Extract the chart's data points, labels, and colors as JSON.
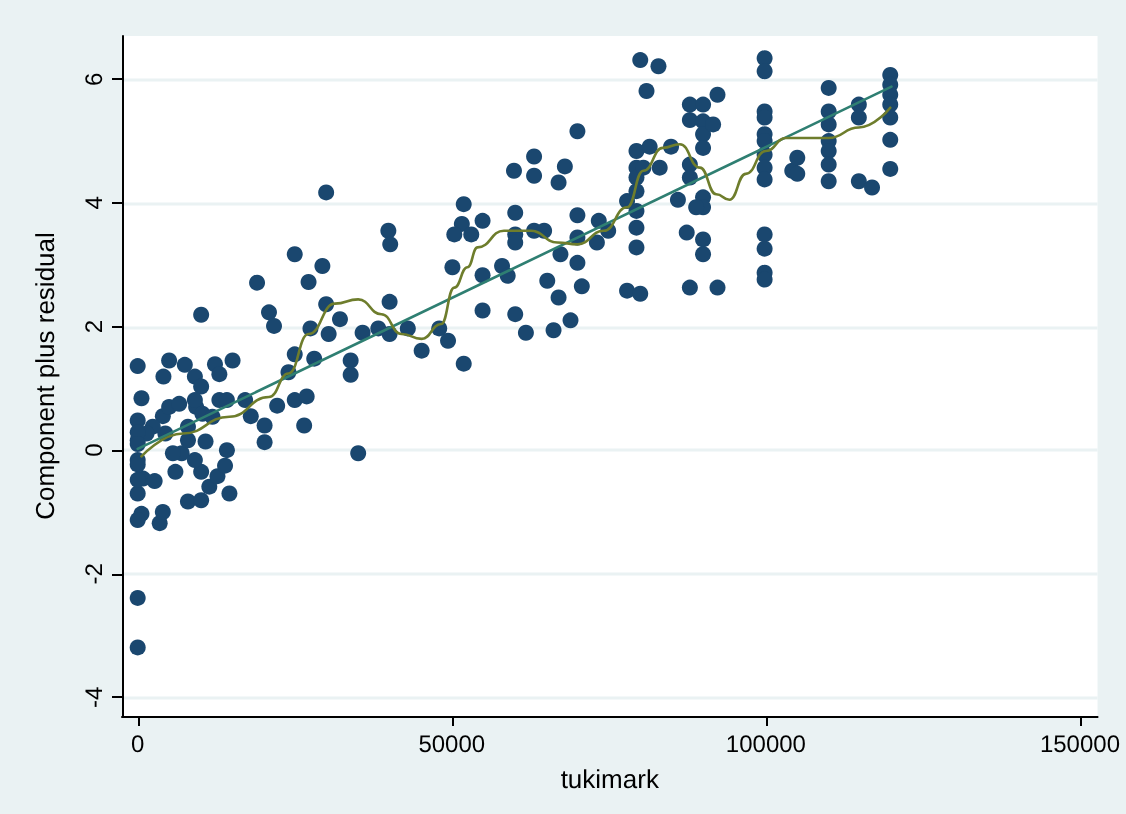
{
  "chart_data": {
    "type": "scatter",
    "xlabel": "tukimark",
    "ylabel": "Component plus residual",
    "xlim": [
      -2500,
      152800
    ],
    "ylim": [
      -4.3,
      6.7
    ],
    "xticks": [
      0,
      50000,
      100000,
      150000
    ],
    "yticks": [
      -4,
      -2,
      0,
      2,
      4,
      6
    ],
    "grid": "y",
    "marker": "circle",
    "series": [
      {
        "color": "#1a476f",
        "x": [
          0,
          600,
          0,
          5000,
          4100,
          7500,
          9100,
          10100,
          10100,
          12300,
          15100,
          13000,
          19000,
          20900,
          21700,
          25000,
          27200,
          29400,
          30000,
          30000,
          30400,
          27500,
          25000,
          24000,
          25000,
          26900,
          26500,
          28100,
          22200,
          20200,
          20200,
          18000,
          17100,
          32200,
          33900,
          33900,
          35100,
          35800,
          38300,
          39900,
          40200,
          40100,
          40100,
          43000,
          45200,
          48000,
          49400,
          50100,
          51600,
          51900,
          51900,
          0,
          0,
          850,
          2700,
          0,
          600,
          3500,
          4000,
          8000,
          10100,
          11400,
          14600,
          12700,
          13900,
          14200,
          10100,
          10800,
          7000,
          6000,
          5600,
          4400,
          4000,
          5000,
          6600,
          8000,
          9300,
          10300,
          11900,
          13000,
          14200,
          9100,
          2400,
          1400,
          8000,
          9100,
          0,
          0,
          0,
          0,
          0,
          0,
          0,
          50400,
          53100,
          54900,
          54900,
          54900,
          58000,
          58900,
          59900,
          60100,
          60100,
          60100,
          60100,
          61800,
          63100,
          63100,
          63100,
          64700,
          65200,
          66200,
          67000,
          68000,
          67300,
          67000,
          68900,
          70000,
          70000,
          70000,
          70000,
          70700,
          73100,
          73400,
          74900,
          77900,
          77900,
          80000,
          79400,
          80000,
          81000,
          82900,
          79400,
          79400,
          79400,
          79400,
          79400,
          79400,
          80500,
          81500,
          83100,
          84900,
          86000,
          87400,
          87900,
          87900,
          87900,
          87900,
          87900,
          90000,
          90000,
          90000,
          90000,
          90000,
          90000,
          90000,
          90000,
          88900,
          91600,
          92300,
          92300,
          99800,
          99800,
          99800,
          99800,
          99800,
          99800,
          99800,
          99800,
          99800,
          99800,
          99800,
          99800,
          99800,
          104200,
          105000,
          105000,
          110000,
          110000,
          110000,
          110000,
          110000,
          110000,
          110000,
          114800,
          114800,
          114800,
          116900,
          119800,
          119800,
          119800,
          119800,
          119800,
          119800,
          119800
        ],
        "values": [
          1.36,
          0.84,
          0.48,
          1.45,
          1.19,
          1.38,
          1.19,
          1.03,
          2.19,
          1.39,
          1.45,
          1.23,
          2.71,
          2.23,
          2.01,
          3.17,
          2.72,
          2.98,
          4.17,
          2.36,
          1.88,
          1.97,
          1.55,
          1.26,
          0.81,
          0.87,
          0.4,
          1.48,
          0.72,
          0.4,
          0.13,
          0.55,
          0.81,
          2.12,
          1.45,
          1.22,
          -0.05,
          1.9,
          1.97,
          3.55,
          3.33,
          2.4,
          1.88,
          1.97,
          1.61,
          1.97,
          1.77,
          2.96,
          3.66,
          3.98,
          1.4,
          0.16,
          -0.16,
          -0.46,
          -0.5,
          -0.7,
          -1.03,
          -1.18,
          -1,
          -0.83,
          -0.81,
          -0.59,
          -0.7,
          -0.42,
          -0.25,
          0,
          -0.35,
          0.14,
          -0.05,
          -0.35,
          -0.05,
          0.27,
          0.55,
          0.7,
          0.75,
          0.38,
          0.7,
          0.59,
          0.54,
          0.81,
          0.81,
          0.81,
          0.38,
          0.27,
          0.16,
          -0.16,
          0.29,
          0.1,
          -0.23,
          -0.48,
          -1.13,
          -2.39,
          -3.19,
          3.49,
          3.49,
          3.71,
          2.83,
          2.26,
          2.98,
          2.82,
          4.52,
          3.84,
          3.49,
          3.36,
          2.2,
          1.9,
          4.75,
          4.44,
          3.55,
          3.55,
          2.74,
          1.94,
          4.33,
          4.59,
          3.17,
          2.47,
          2.1,
          5.16,
          3.8,
          3.44,
          3.03,
          2.65,
          3.36,
          3.71,
          3.55,
          4.03,
          2.58,
          2.53,
          4.84,
          6.31,
          5.81,
          6.21,
          4.57,
          4.41,
          4.19,
          3.87,
          3.6,
          3.28,
          4.57,
          4.91,
          4.57,
          4.91,
          4.05,
          3.52,
          2.63,
          5.59,
          5.34,
          4.62,
          4.41,
          5.59,
          5.32,
          5.11,
          4.89,
          4.09,
          3.93,
          3.41,
          3.17,
          3.93,
          5.27,
          5.75,
          2.63,
          6.34,
          6.13,
          5.48,
          5.38,
          5.11,
          5,
          4.78,
          4.57,
          4.38,
          3.49,
          3.26,
          2.87,
          2.76,
          4.52,
          4.73,
          4.47,
          5.86,
          5.48,
          5.27,
          5,
          4.84,
          4.62,
          4.35,
          5.59,
          5.38,
          4.35,
          4.25,
          6.07,
          5.91,
          5.75,
          5.59,
          5.38,
          5.02,
          4.55
        ]
      },
      {
        "type": "line",
        "color": "#2f7f72",
        "marker": "none",
        "x": [
          0,
          120000
        ],
        "values": [
          0.02,
          5.88
        ]
      },
      {
        "type": "line",
        "color": "#6e7d2c",
        "marker": "none",
        "x": [
          600,
          7200,
          14600,
          20900,
          24000,
          27200,
          31400,
          35100,
          38800,
          42000,
          45200,
          48300,
          50400,
          52500,
          54100,
          58300,
          62600,
          66800,
          70000,
          74200,
          77900,
          80500,
          83600,
          86300,
          89500,
          92100,
          94200,
          96800,
          100000,
          103200,
          104800,
          110000,
          114800,
          119800
        ],
        "values": [
          -0.1,
          0.27,
          0.54,
          0.86,
          1.24,
          1.88,
          2.37,
          2.44,
          2.2,
          1.88,
          1.8,
          2.04,
          2.63,
          2.96,
          3.28,
          3.55,
          3.55,
          3.36,
          3.33,
          3.55,
          3.93,
          4.52,
          4.89,
          4.95,
          4.57,
          4.14,
          4.05,
          4.47,
          4.84,
          5.05,
          5.05,
          5.05,
          5.22,
          5.54
        ]
      }
    ]
  }
}
